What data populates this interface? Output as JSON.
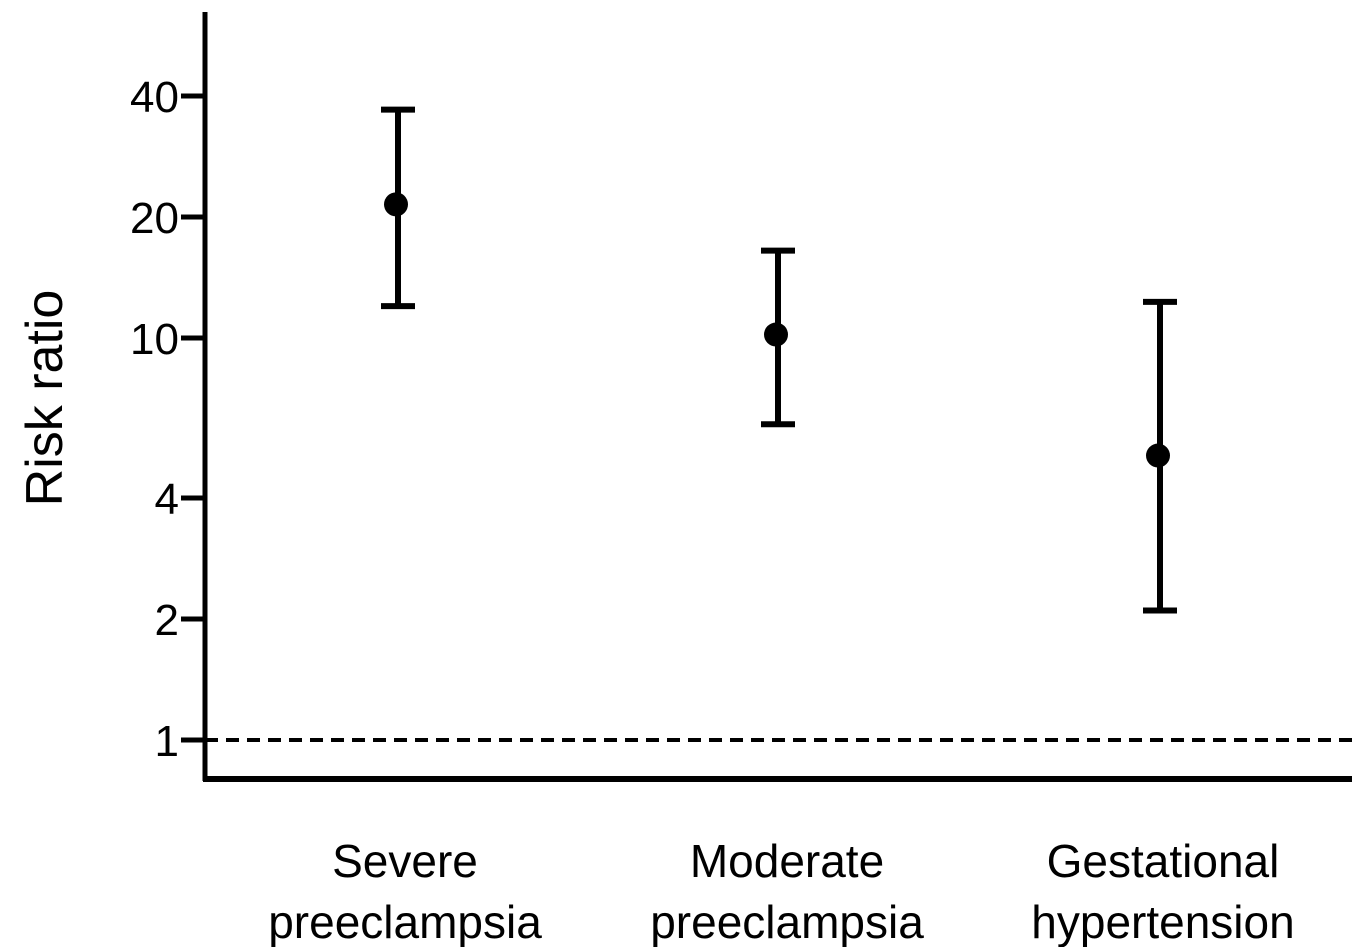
{
  "chart_data": {
    "type": "scatter",
    "ylabel": "Risk ratio",
    "yscale": "log",
    "ylim": [
      0.84,
      70
    ],
    "yticks": [
      {
        "value": 1,
        "label": "1"
      },
      {
        "value": 2,
        "label": "2"
      },
      {
        "value": 4,
        "label": "4"
      },
      {
        "value": 10,
        "label": "10"
      },
      {
        "value": 20,
        "label": "20"
      },
      {
        "value": 40,
        "label": "40"
      }
    ],
    "reference_line": {
      "value": 1,
      "style": "dashed"
    },
    "categories": [
      {
        "line1": "Severe",
        "line2": "preeclampsia"
      },
      {
        "line1": "Moderate",
        "line2": "preeclampsia"
      },
      {
        "line1": "Gestational",
        "line2": "hypertension"
      }
    ],
    "points": [
      {
        "estimate": 21.5,
        "lower": 12.0,
        "upper": 37.0
      },
      {
        "estimate": 10.2,
        "lower": 6.1,
        "upper": 16.5
      },
      {
        "estimate": 5.1,
        "lower": 2.1,
        "upper": 12.3
      }
    ],
    "grid": false,
    "legend": "none",
    "color": "#000000"
  }
}
